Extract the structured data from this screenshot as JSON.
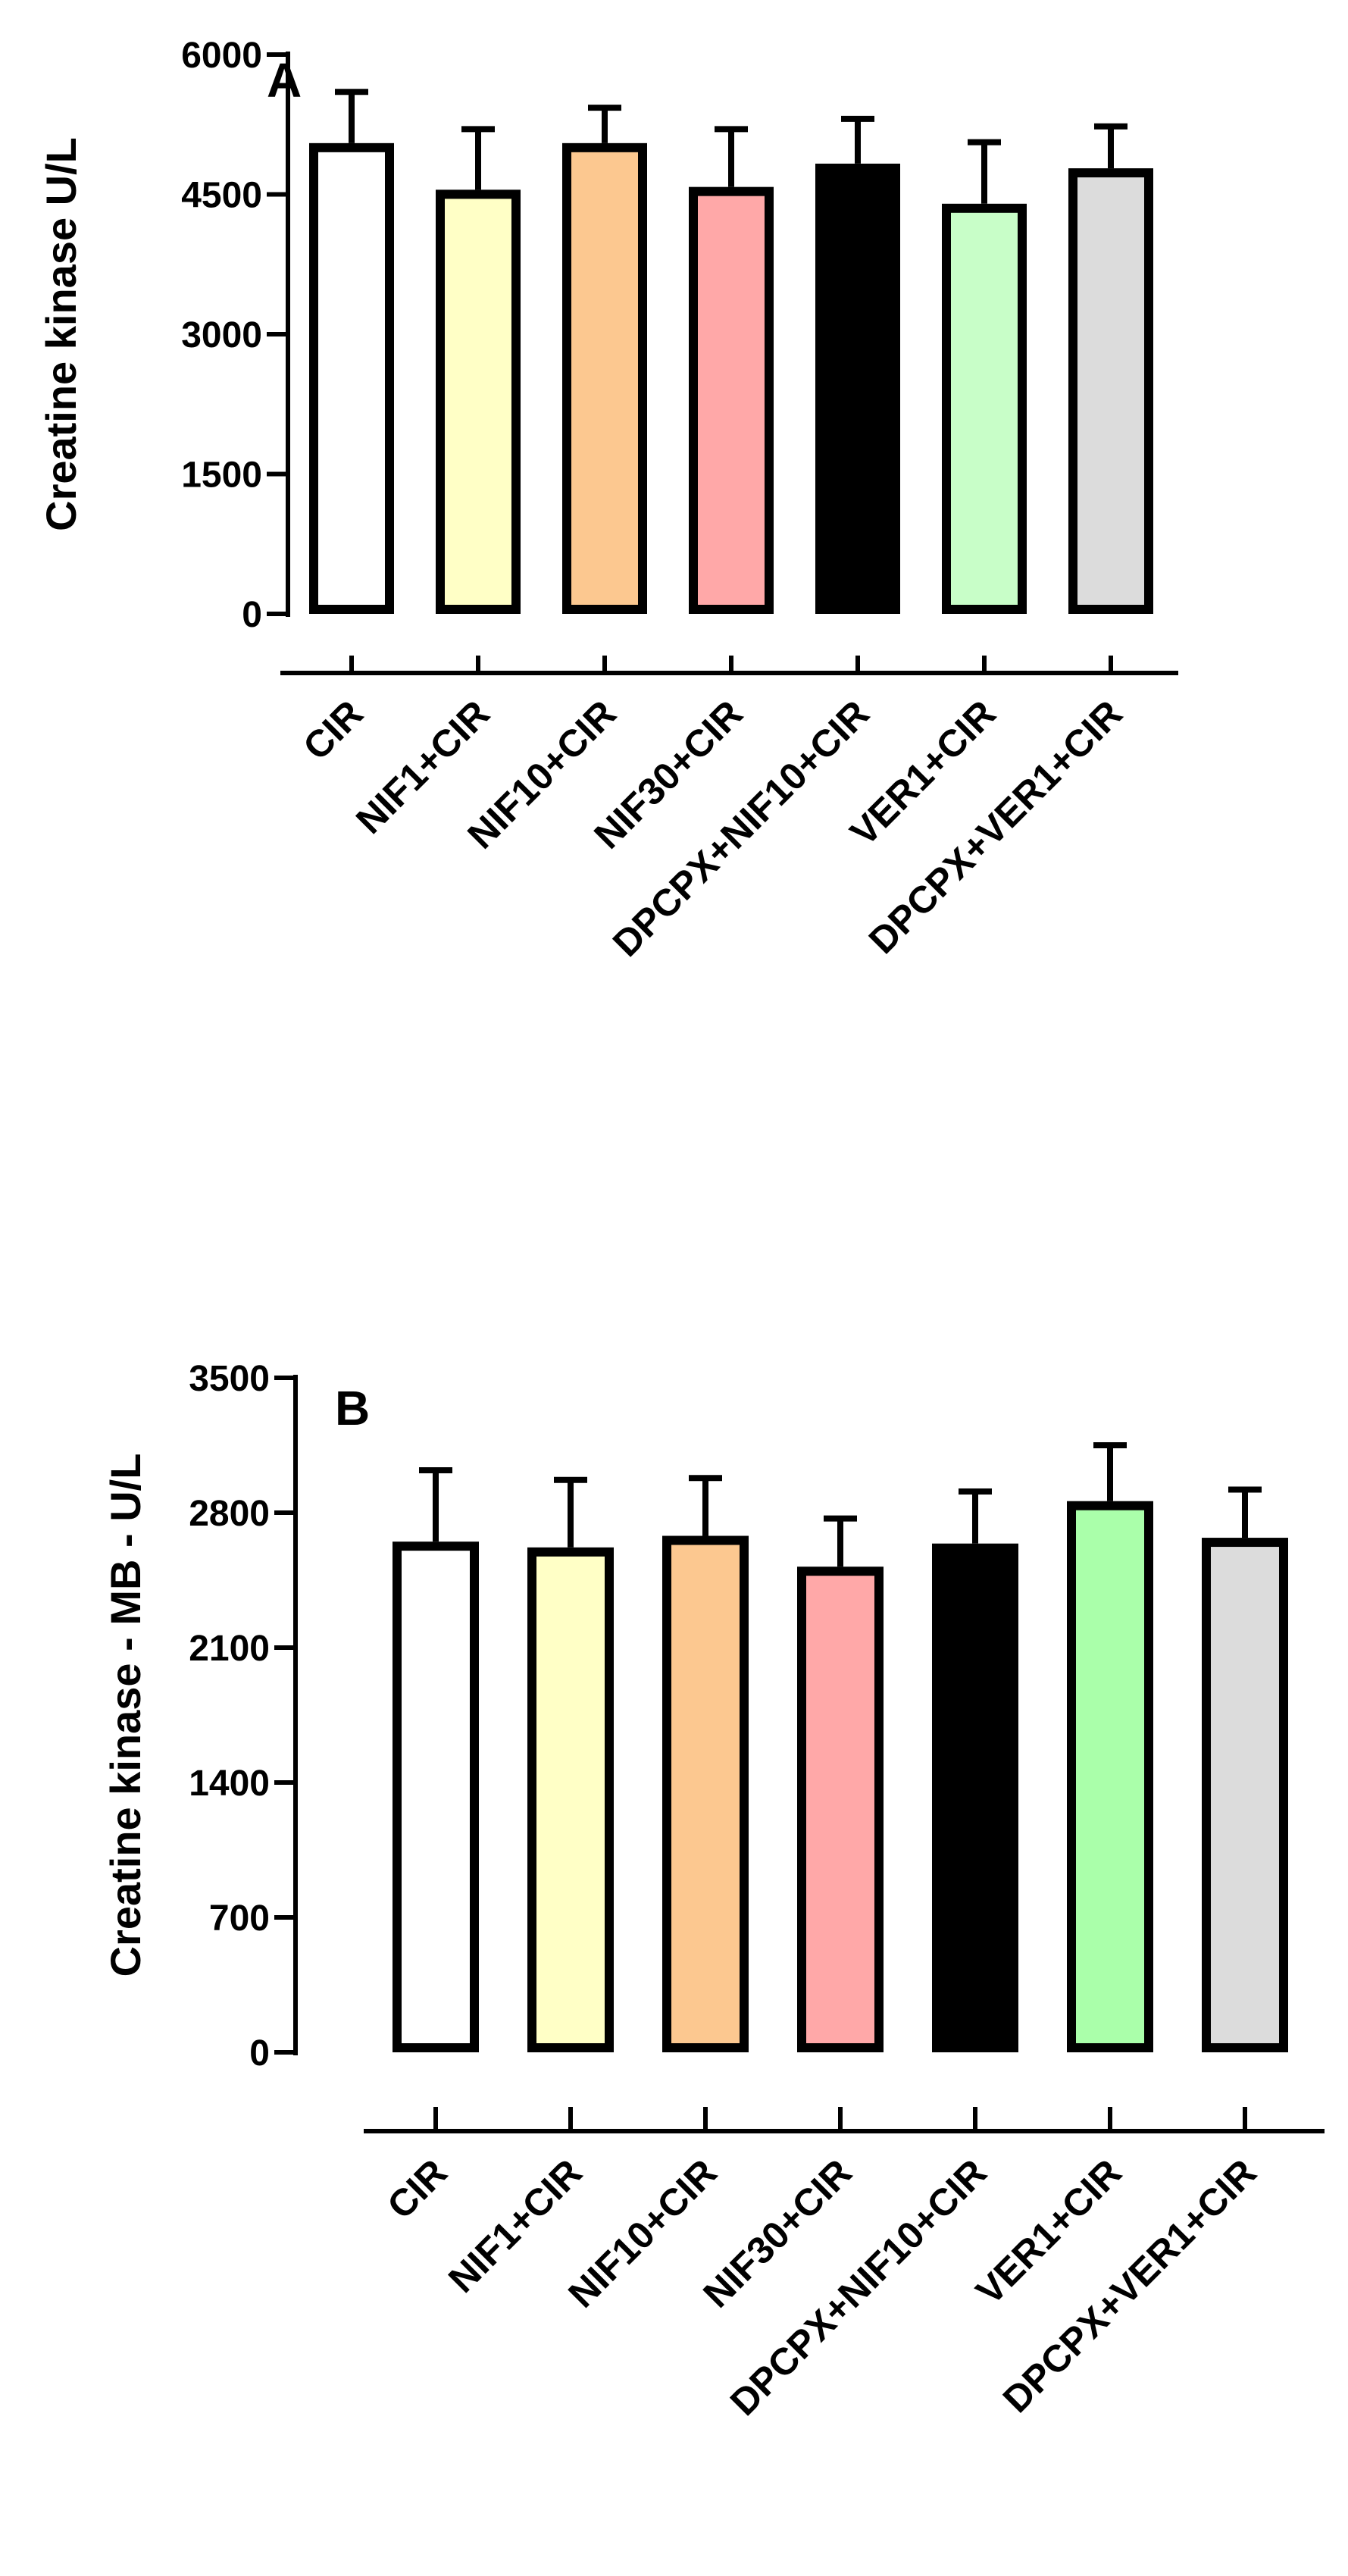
{
  "chart_data": [
    {
      "type": "bar",
      "panel": "A",
      "title": "",
      "ylabel": "Creatine kinase U/L",
      "xlabel": "",
      "ylim": [
        0,
        6000
      ],
      "yticks": [
        "0",
        "1500",
        "3000",
        "4500",
        "6000"
      ],
      "grid": false,
      "categories": [
        "CIR",
        "NIF1+CIR",
        "NIF10+CIR",
        "NIF30+CIR",
        "DPCPX+NIF10+CIR",
        "VER1+CIR",
        "DPCPX+VER1+CIR"
      ],
      "values": [
        5050,
        4550,
        5050,
        4580,
        4830,
        4400,
        4780
      ],
      "errors": [
        550,
        650,
        380,
        620,
        480,
        660,
        450
      ],
      "colors": [
        "#ffffff",
        "#ffffc6",
        "#fcc890",
        "#ffa8a8",
        "#000000",
        "#c8fec8",
        "#dcdcdc"
      ]
    },
    {
      "type": "bar",
      "panel": "B",
      "title": "",
      "ylabel": "Creatine kinase - MB - U/L",
      "xlabel": "",
      "ylim": [
        0,
        3500
      ],
      "yticks": [
        "0",
        "700",
        "1400",
        "2100",
        "2800",
        "3500"
      ],
      "grid": false,
      "categories": [
        "CIR",
        "NIF1+CIR",
        "NIF10+CIR",
        "NIF30+CIR",
        "DPCPX+NIF10+CIR",
        "VER1+CIR",
        "DPCPX+VER1+CIR"
      ],
      "values": [
        2650,
        2620,
        2680,
        2520,
        2640,
        2860,
        2670
      ],
      "errors": [
        370,
        350,
        300,
        250,
        270,
        290,
        250
      ],
      "colors": [
        "#ffffff",
        "#ffffc6",
        "#fcc890",
        "#ffa8a8",
        "#000000",
        "#aaffaa",
        "#dcdcdc"
      ]
    }
  ]
}
